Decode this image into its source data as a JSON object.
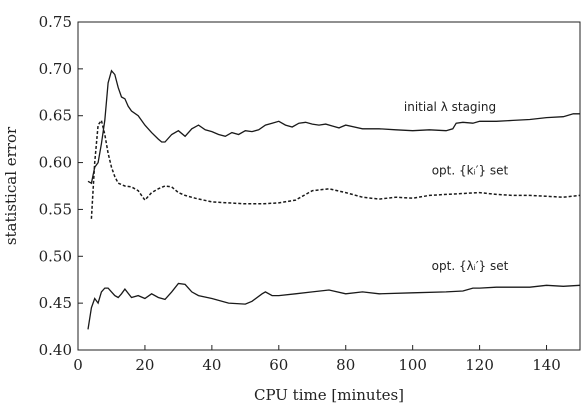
{
  "chart_data": {
    "type": "line",
    "title": "",
    "xlabel": "CPU time [minutes]",
    "ylabel": "statistical error",
    "xlim": [
      0,
      150
    ],
    "ylim": [
      0.4,
      0.75
    ],
    "xticks": [
      0,
      20,
      40,
      60,
      80,
      100,
      120,
      140
    ],
    "xtick_labels": [
      "0",
      "20",
      "40",
      "60",
      "80",
      "100",
      "120",
      "140"
    ],
    "yticks": [
      0.4,
      0.45,
      0.5,
      0.55,
      0.6,
      0.65,
      0.7,
      0.75
    ],
    "ytick_labels": [
      "0.40",
      "0.45",
      "0.50",
      "0.55",
      "0.60",
      "0.65",
      "0.70",
      "0.75"
    ],
    "grid": false,
    "series": [
      {
        "name": "initial λ staging",
        "style": "solid",
        "color": "#1a1a1a",
        "x": [
          3,
          4,
          5,
          6,
          7,
          8,
          9,
          10,
          11,
          12,
          13,
          14,
          15,
          16,
          18,
          20,
          22,
          24,
          25,
          26,
          28,
          30,
          32,
          34,
          36,
          38,
          40,
          42,
          44,
          46,
          48,
          50,
          52,
          54,
          56,
          58,
          60,
          62,
          64,
          66,
          68,
          70,
          72,
          74,
          76,
          78,
          80,
          85,
          90,
          95,
          100,
          105,
          110,
          112,
          113,
          115,
          118,
          120,
          125,
          130,
          135,
          140,
          145,
          148,
          150
        ],
        "y": [
          0.58,
          0.578,
          0.595,
          0.6,
          0.62,
          0.645,
          0.685,
          0.698,
          0.694,
          0.68,
          0.67,
          0.668,
          0.66,
          0.655,
          0.65,
          0.64,
          0.632,
          0.625,
          0.622,
          0.622,
          0.63,
          0.634,
          0.628,
          0.636,
          0.64,
          0.635,
          0.633,
          0.63,
          0.628,
          0.632,
          0.63,
          0.634,
          0.633,
          0.635,
          0.64,
          0.642,
          0.644,
          0.64,
          0.638,
          0.642,
          0.643,
          0.641,
          0.64,
          0.641,
          0.639,
          0.637,
          0.64,
          0.636,
          0.636,
          0.635,
          0.634,
          0.635,
          0.634,
          0.636,
          0.642,
          0.643,
          0.642,
          0.644,
          0.644,
          0.645,
          0.646,
          0.648,
          0.649,
          0.652,
          0.652
        ]
      },
      {
        "name": "opt. {kᵢ′} set",
        "style": "dashed",
        "color": "#1a1a1a",
        "x": [
          4,
          5,
          6,
          7,
          8,
          9,
          10,
          11,
          12,
          14,
          16,
          18,
          20,
          22,
          24,
          26,
          28,
          30,
          32,
          35,
          40,
          45,
          50,
          55,
          60,
          65,
          70,
          75,
          80,
          85,
          90,
          95,
          100,
          105,
          110,
          115,
          120,
          125,
          130,
          135,
          140,
          145,
          150
        ],
        "y": [
          0.54,
          0.6,
          0.64,
          0.645,
          0.63,
          0.61,
          0.595,
          0.585,
          0.578,
          0.575,
          0.574,
          0.57,
          0.56,
          0.568,
          0.572,
          0.575,
          0.574,
          0.568,
          0.565,
          0.562,
          0.558,
          0.557,
          0.556,
          0.556,
          0.557,
          0.56,
          0.57,
          0.572,
          0.568,
          0.563,
          0.561,
          0.563,
          0.562,
          0.565,
          0.566,
          0.567,
          0.568,
          0.566,
          0.565,
          0.565,
          0.564,
          0.563,
          0.565
        ]
      },
      {
        "name": "opt. {λᵢ′} set",
        "style": "solid",
        "color": "#1a1a1a",
        "x": [
          3,
          4,
          5,
          6,
          7,
          8,
          9,
          10,
          11,
          12,
          13,
          14,
          16,
          18,
          20,
          22,
          24,
          26,
          28,
          30,
          32,
          34,
          36,
          40,
          45,
          50,
          52,
          55,
          56,
          58,
          60,
          65,
          70,
          75,
          80,
          85,
          90,
          100,
          110,
          115,
          118,
          120,
          125,
          130,
          135,
          140,
          145,
          150
        ],
        "y": [
          0.422,
          0.445,
          0.455,
          0.45,
          0.462,
          0.466,
          0.466,
          0.462,
          0.458,
          0.456,
          0.46,
          0.465,
          0.456,
          0.458,
          0.455,
          0.46,
          0.456,
          0.454,
          0.462,
          0.471,
          0.47,
          0.462,
          0.458,
          0.455,
          0.45,
          0.449,
          0.452,
          0.46,
          0.462,
          0.458,
          0.458,
          0.46,
          0.462,
          0.464,
          0.46,
          0.462,
          0.46,
          0.461,
          0.462,
          0.463,
          0.466,
          0.466,
          0.467,
          0.467,
          0.467,
          0.469,
          0.468,
          0.469
        ]
      }
    ],
    "annotations": [
      {
        "text": "initial λ staging",
        "series": 0
      },
      {
        "text": "opt. {kᵢ′} set",
        "series": 1
      },
      {
        "text": "opt. {λᵢ′} set",
        "series": 2
      }
    ]
  }
}
